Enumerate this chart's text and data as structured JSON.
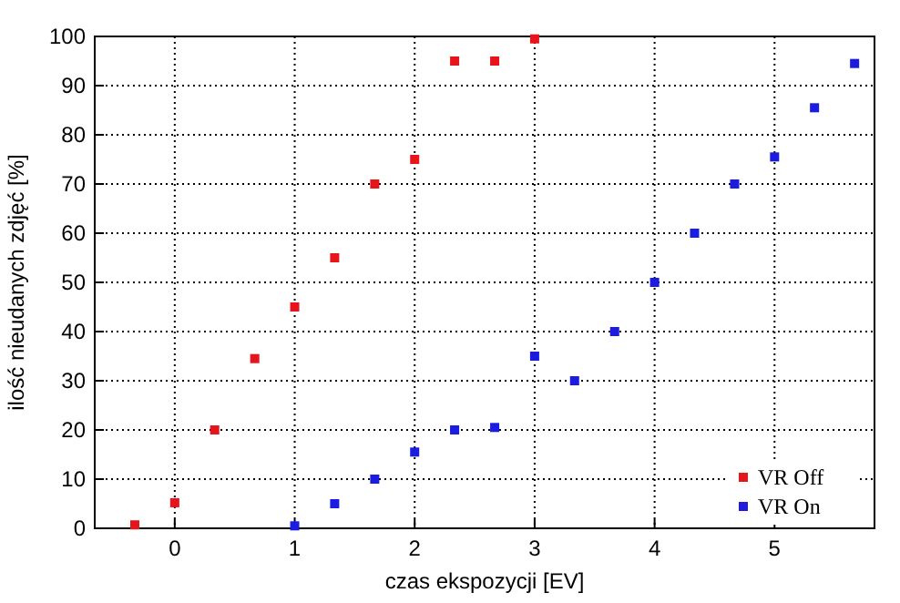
{
  "chart_data": {
    "type": "scatter",
    "xlabel": "czas ekspozycji [EV]",
    "ylabel": "ilość nieudanych zdjęć [%]",
    "xlim": [
      -0.667,
      5.833
    ],
    "ylim": [
      0,
      100
    ],
    "xticks": [
      0,
      1,
      2,
      3,
      4,
      5
    ],
    "yticks": [
      0,
      10,
      20,
      30,
      40,
      50,
      60,
      70,
      80,
      90,
      100
    ],
    "grid": true,
    "legend": "bottom right",
    "marker": "square",
    "series": [
      {
        "name": "VR Off",
        "color": "#e8141c",
        "x": [
          -0.333,
          0,
          0.333,
          0.667,
          1,
          1.333,
          1.667,
          2,
          2.333,
          2.667,
          3
        ],
        "values": [
          0.7,
          5.2,
          20,
          34.5,
          45,
          55,
          70,
          75,
          95,
          95,
          99.5
        ]
      },
      {
        "name": "VR On",
        "color": "#1c1ce0",
        "x": [
          1,
          1.333,
          1.667,
          2,
          2.333,
          2.667,
          3,
          3.333,
          3.667,
          4,
          4.333,
          4.667,
          5,
          5.333,
          5.667
        ],
        "values": [
          0.5,
          5,
          10,
          15.5,
          20,
          20.5,
          35,
          30,
          40,
          50,
          60,
          70,
          75.5,
          85.5,
          94.5
        ]
      }
    ]
  }
}
